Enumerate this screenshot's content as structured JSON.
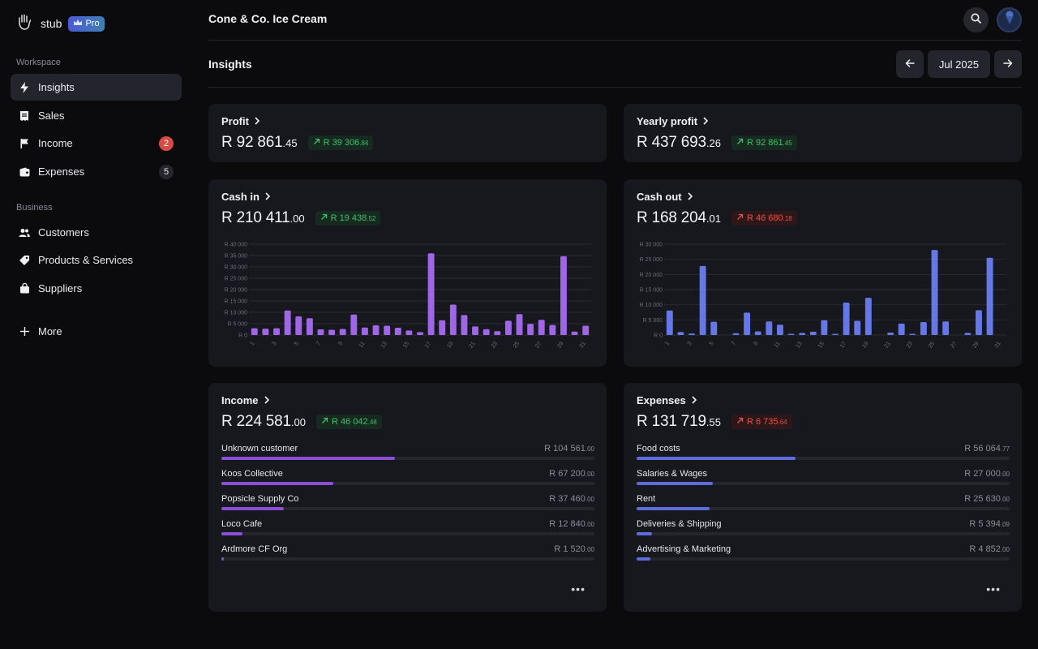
{
  "brand": {
    "name": "stub",
    "badge": "Pro"
  },
  "sidebar": {
    "workspace_label": "Workspace",
    "business_label": "Business",
    "items": [
      {
        "label": "Insights",
        "icon": "bolt-icon",
        "active": true
      },
      {
        "label": "Sales",
        "icon": "receipt-icon"
      },
      {
        "label": "Income",
        "icon": "flag-icon",
        "badge": "2"
      },
      {
        "label": "Expenses",
        "icon": "wallet-icon",
        "badge": "5"
      }
    ],
    "business_items": [
      {
        "label": "Customers",
        "icon": "users-icon"
      },
      {
        "label": "Products & Services",
        "icon": "tag-icon"
      },
      {
        "label": "Suppliers",
        "icon": "bag-icon"
      }
    ],
    "more_label": "More"
  },
  "header": {
    "company": "Cone & Co. Ice Cream"
  },
  "page": {
    "title": "Insights",
    "period": "Jul 2025"
  },
  "cards": {
    "profit": {
      "title": "Profit",
      "amount": "R 92 861",
      "cents": ".45",
      "delta": "R 39 306",
      "delta_cents": ".84",
      "trend": "up"
    },
    "yearly_profit": {
      "title": "Yearly profit",
      "amount": "R 437 693",
      "cents": ".26",
      "delta": "R 92 861",
      "delta_cents": ".45",
      "trend": "up"
    },
    "cash_in": {
      "title": "Cash in",
      "amount": "R 210 411",
      "cents": ".00",
      "delta": "R 19 438",
      "delta_cents": ".52",
      "trend": "up"
    },
    "cash_out": {
      "title": "Cash out",
      "amount": "R 168 204",
      "cents": ".01",
      "delta": "R 46 680",
      "delta_cents": ".18",
      "trend": "down"
    },
    "income": {
      "title": "Income",
      "amount": "R 224 581",
      "cents": ".00",
      "delta": "R 46 042",
      "delta_cents": ".48",
      "trend": "up",
      "rows": [
        {
          "name": "Unknown customer",
          "value": "R 104 561",
          "cents": ".00",
          "share": 0.466
        },
        {
          "name": "Koos Collective",
          "value": "R 67 200",
          "cents": ".00",
          "share": 0.299
        },
        {
          "name": "Popsicle Supply Co",
          "value": "R 37 460",
          "cents": ".00",
          "share": 0.167
        },
        {
          "name": "Loco Cafe",
          "value": "R 12 840",
          "cents": ".00",
          "share": 0.057
        },
        {
          "name": "Ardmore CF Org",
          "value": "R 1 520",
          "cents": ".00",
          "share": 0.007
        }
      ]
    },
    "expenses": {
      "title": "Expenses",
      "amount": "R 131 719",
      "cents": ".55",
      "delta": "R 6 735",
      "delta_cents": ".64",
      "trend": "down",
      "rows": [
        {
          "name": "Food costs",
          "value": "R 56 064",
          "cents": ".77",
          "share": 0.426
        },
        {
          "name": "Salaries & Wages",
          "value": "R 27 000",
          "cents": ".00",
          "share": 0.205
        },
        {
          "name": "Rent",
          "value": "R 25 630",
          "cents": ".00",
          "share": 0.195
        },
        {
          "name": "Deliveries & Shipping",
          "value": "R 5 394",
          "cents": ".09",
          "share": 0.041
        },
        {
          "name": "Advertising & Marketing",
          "value": "R 4 852",
          "cents": ".00",
          "share": 0.037
        }
      ]
    }
  },
  "colors": {
    "income": "#8a4fd6",
    "expense": "#5c6cdc",
    "up": "#3fbf6f",
    "down": "#e5524b"
  },
  "chart_data": [
    {
      "type": "bar",
      "ylim": [
        0,
        40000
      ],
      "y_ticks": [
        "R 0",
        "R 5 000",
        "R 10 000",
        "R 15 000",
        "R 20 000",
        "R 25 000",
        "R 30 000",
        "R 35 000",
        "R 40 000"
      ],
      "x_ticks": [
        "1",
        "3",
        "5",
        "7",
        "9",
        "11",
        "13",
        "15",
        "17",
        "19",
        "21",
        "23",
        "25",
        "27",
        "29",
        "31"
      ],
      "categories": [
        "1",
        "2",
        "3",
        "4",
        "5",
        "6",
        "7",
        "8",
        "9",
        "10",
        "11",
        "12",
        "13",
        "14",
        "15",
        "16",
        "17",
        "18",
        "19",
        "20",
        "21",
        "22",
        "23",
        "24",
        "25",
        "26",
        "27",
        "28",
        "29",
        "30",
        "31"
      ],
      "values": [
        3000,
        2800,
        3000,
        10800,
        8200,
        7400,
        2500,
        2300,
        2700,
        9000,
        3300,
        4300,
        4100,
        3200,
        2000,
        1300,
        36000,
        6500,
        13400,
        8800,
        3800,
        2600,
        1700,
        6300,
        9200,
        4900,
        6700,
        4400,
        34700,
        1500,
        4100
      ],
      "color": "#a066e8"
    },
    {
      "type": "bar",
      "ylim": [
        0,
        30000
      ],
      "y_ticks": [
        "R 0",
        "R 5 000",
        "R 10 000",
        "R 15 000",
        "R 20 000",
        "R 25 000",
        "R 30 000"
      ],
      "x_ticks": [
        "1",
        "3",
        "5",
        "7",
        "9",
        "11",
        "13",
        "15",
        "17",
        "19",
        "21",
        "23",
        "25",
        "27",
        "29",
        "31"
      ],
      "categories": [
        "1",
        "2",
        "3",
        "4",
        "5",
        "6",
        "7",
        "8",
        "9",
        "10",
        "11",
        "12",
        "13",
        "14",
        "15",
        "16",
        "17",
        "18",
        "19",
        "20",
        "21",
        "22",
        "23",
        "24",
        "25",
        "26",
        "27",
        "28",
        "29",
        "30",
        "31"
      ],
      "values": [
        8100,
        1000,
        500,
        22800,
        4400,
        0,
        600,
        7400,
        1200,
        4500,
        3400,
        400,
        700,
        1100,
        4900,
        400,
        10700,
        4700,
        12300,
        0,
        800,
        3800,
        400,
        4300,
        28100,
        4500,
        0,
        700,
        8200,
        25500,
        0
      ],
      "color": "#6678e8"
    }
  ]
}
